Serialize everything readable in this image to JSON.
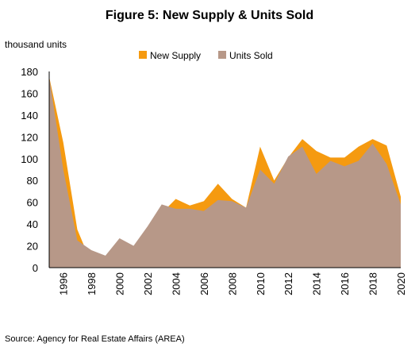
{
  "chart_data": {
    "type": "area",
    "title": "Figure 5: New Supply & Units Sold",
    "ylabel": "thousand units",
    "xlabel": "",
    "source": "Source: Agency for Real Estate Affairs (AREA)",
    "legend_position": "top",
    "ylim": [
      0,
      180
    ],
    "yticks": [
      0,
      20,
      40,
      60,
      80,
      100,
      120,
      140,
      160,
      180
    ],
    "xlim": [
      1995,
      2020
    ],
    "xticks": [
      1996,
      1998,
      2000,
      2002,
      2004,
      2006,
      2008,
      2010,
      2012,
      2014,
      2016,
      2018,
      2020
    ],
    "grid": false,
    "x": [
      1995,
      1996,
      1997,
      1998,
      1999,
      2000,
      2001,
      2002,
      2003,
      2004,
      2005,
      2006,
      2007,
      2008,
      2009,
      2010,
      2011,
      2012,
      2013,
      2014,
      2015,
      2016,
      2017,
      2018,
      2019,
      2020
    ],
    "series": [
      {
        "name": "New Supply",
        "color": "#f59a10",
        "values": [
          175,
          115,
          35,
          4,
          5,
          10,
          14,
          30,
          50,
          63,
          57,
          61,
          77,
          63,
          55,
          111,
          80,
          101,
          118,
          107,
          101,
          101,
          111,
          118,
          112,
          65
        ]
      },
      {
        "name": "Units Sold",
        "color": "#b79888",
        "values": [
          175,
          90,
          25,
          16,
          11,
          27,
          20,
          38,
          58,
          54,
          54,
          52,
          62,
          61,
          55,
          90,
          77,
          102,
          111,
          86,
          98,
          93,
          98,
          114,
          95,
          58
        ]
      }
    ]
  },
  "colors": {
    "axis": "#000000",
    "new_supply": "#f59a10",
    "units_sold": "#b79888"
  }
}
